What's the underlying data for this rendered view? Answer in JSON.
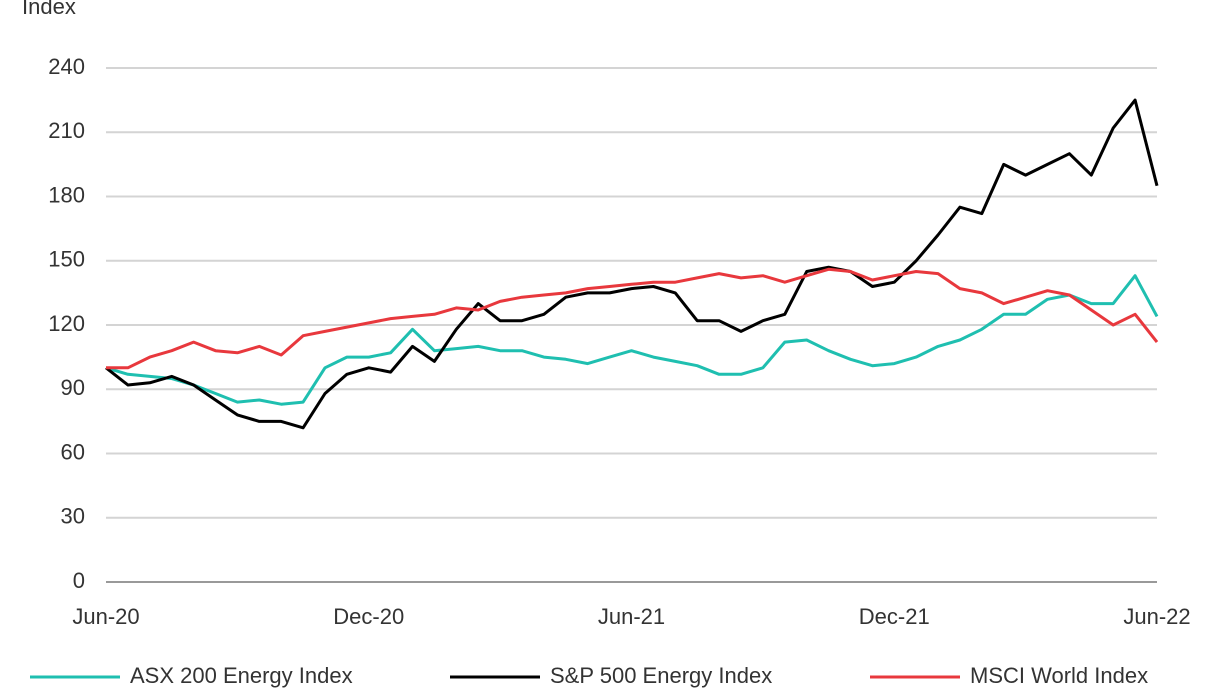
{
  "chart_data": {
    "type": "line",
    "y_axis_label": "Index",
    "categories": [
      "Jun-20",
      null,
      null,
      null,
      null,
      null,
      null,
      null,
      null,
      null,
      null,
      null,
      "Dec-20",
      null,
      null,
      null,
      null,
      null,
      null,
      null,
      null,
      null,
      null,
      null,
      "Jun-21",
      null,
      null,
      null,
      null,
      null,
      null,
      null,
      null,
      null,
      null,
      null,
      "Dec-21",
      null,
      null,
      null,
      null,
      null,
      null,
      null,
      null,
      null,
      null,
      null,
      "Jun-22"
    ],
    "series": [
      {
        "name": "ASX 200 Energy Index",
        "color": "#1fbfb0",
        "values": [
          100,
          97,
          96,
          95,
          92,
          88,
          84,
          85,
          83,
          84,
          100,
          105,
          105,
          107,
          118,
          108,
          109,
          110,
          108,
          108,
          105,
          104,
          102,
          105,
          108,
          105,
          103,
          101,
          97,
          97,
          100,
          112,
          113,
          108,
          104,
          101,
          102,
          105,
          110,
          113,
          118,
          125,
          125,
          132,
          134,
          130,
          130,
          143,
          124
        ]
      },
      {
        "name": "S&P 500 Energy Index",
        "color": "#000000",
        "values": [
          100,
          92,
          93,
          96,
          92,
          85,
          78,
          75,
          75,
          72,
          88,
          97,
          100,
          98,
          110,
          103,
          118,
          130,
          122,
          122,
          125,
          133,
          135,
          135,
          137,
          138,
          135,
          122,
          122,
          117,
          122,
          125,
          145,
          147,
          145,
          138,
          140,
          150,
          162,
          175,
          172,
          195,
          190,
          195,
          200,
          190,
          212,
          225,
          185
        ]
      },
      {
        "name": "MSCI World Index",
        "color": "#e8383d",
        "values": [
          100,
          100,
          105,
          108,
          112,
          108,
          107,
          110,
          106,
          115,
          117,
          119,
          121,
          123,
          124,
          125,
          128,
          127,
          131,
          133,
          134,
          135,
          137,
          138,
          139,
          140,
          140,
          142,
          144,
          142,
          143,
          140,
          143,
          146,
          145,
          141,
          143,
          145,
          144,
          137,
          135,
          130,
          133,
          136,
          134,
          127,
          120,
          125,
          112
        ]
      }
    ],
    "ylim": [
      0,
      240
    ],
    "yticks": [
      0,
      30,
      60,
      90,
      120,
      150,
      180,
      210,
      240
    ],
    "grid": true
  }
}
